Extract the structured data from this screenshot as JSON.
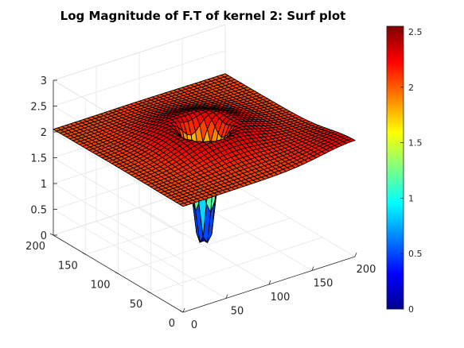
{
  "chart_data": {
    "type": "surface",
    "title": "Log Magnitude of F.T of kernel 2: Surf plot",
    "xlabel": "",
    "ylabel": "",
    "zlabel": "",
    "xlim": [
      0,
      200
    ],
    "ylim": [
      0,
      200
    ],
    "zlim": [
      0,
      3
    ],
    "x_ticks": [
      "0",
      "50",
      "100",
      "150",
      "200"
    ],
    "y_ticks": [
      "0",
      "50",
      "100",
      "150",
      "200"
    ],
    "z_ticks": [
      "0",
      "0.5",
      "1",
      "1.5",
      "2",
      "2.5",
      "3"
    ],
    "colormap": "jet",
    "color_range": [
      0,
      2.55
    ],
    "colorbar_ticks": [
      "0",
      "0.5",
      "1",
      "1.5",
      "2",
      "2.5"
    ],
    "colorbar_location": "right",
    "grid": true,
    "description_values": {
      "edge_level": 2.05,
      "center_minimum": 0.1,
      "peak_level": 2.55
    }
  }
}
